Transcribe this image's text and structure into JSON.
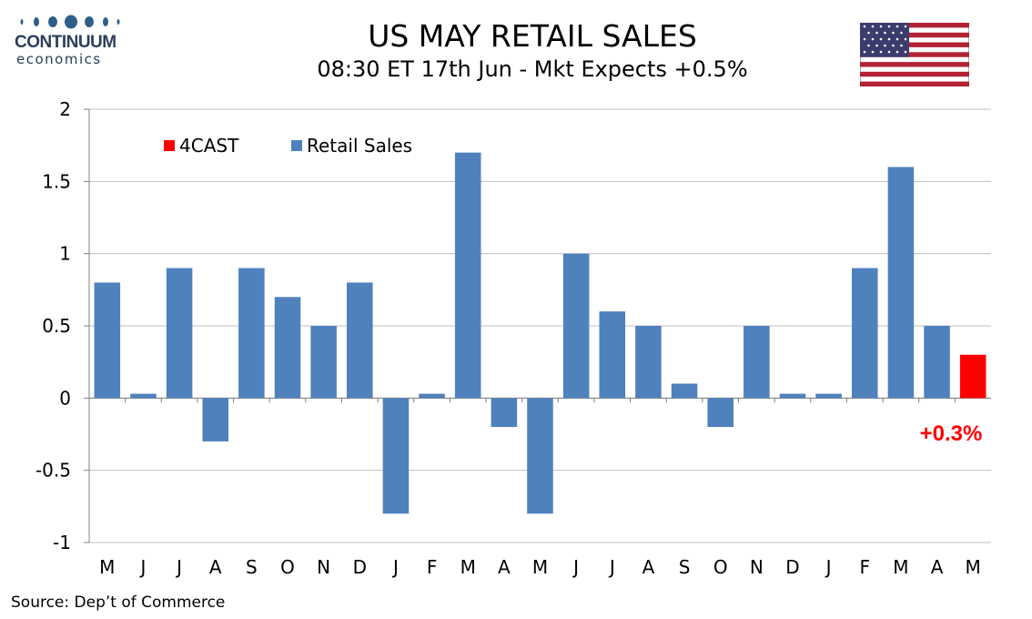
{
  "logo": {
    "brand": "CONTINUUM",
    "sub": "economics",
    "dot_color": "#2e5f8a"
  },
  "header": {
    "title": "US MAY RETAIL SALES",
    "subtitle": "08:30 ET 17th Jun - Mkt Expects +0.5%"
  },
  "flag": {
    "icon": "us-flag-icon"
  },
  "source": "Source: Dep’t of Commerce",
  "colors": {
    "actual": "#4f81bd",
    "forecast": "#ff0000",
    "grid": "#c0c0c0"
  },
  "chart_data": {
    "type": "bar",
    "categories": [
      "M",
      "J",
      "J",
      "A",
      "S",
      "O",
      "N",
      "D",
      "J",
      "F",
      "M",
      "A",
      "M",
      "J",
      "J",
      "A",
      "S",
      "O",
      "N",
      "D",
      "J",
      "F",
      "M",
      "A",
      "M"
    ],
    "series": [
      {
        "name": "Retail Sales",
        "values": [
          0.8,
          0.03,
          0.9,
          -0.3,
          0.9,
          0.7,
          0.5,
          0.8,
          -0.8,
          0.03,
          1.7,
          -0.2,
          -0.8,
          1.0,
          0.6,
          0.5,
          0.1,
          -0.2,
          0.5,
          0.03,
          0.03,
          0.9,
          1.6,
          0.5,
          null
        ]
      },
      {
        "name": "4CAST",
        "values": [
          null,
          null,
          null,
          null,
          null,
          null,
          null,
          null,
          null,
          null,
          null,
          null,
          null,
          null,
          null,
          null,
          null,
          null,
          null,
          null,
          null,
          null,
          null,
          null,
          0.3
        ]
      }
    ],
    "yticks": [
      "2",
      "1.5",
      "1",
      "0.5",
      "0",
      "-0.5",
      "-1"
    ],
    "ylim": [
      -1,
      2
    ],
    "grid": true,
    "legend_position": "top-left",
    "annotation": "+0.3%"
  }
}
